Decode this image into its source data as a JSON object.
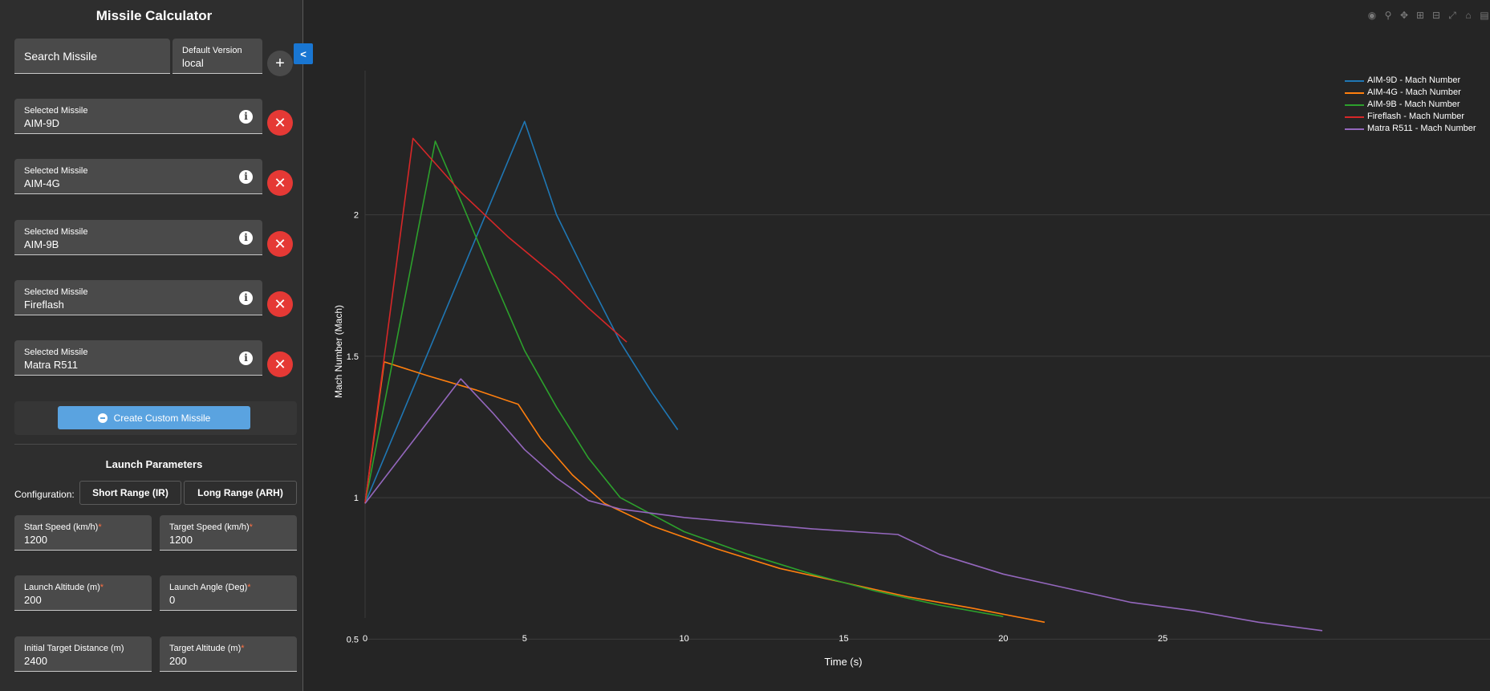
{
  "sidebar": {
    "title": "Missile Calculator",
    "search": {
      "placeholder": "Search Missile"
    },
    "version": {
      "label": "Default Version",
      "value": "local"
    },
    "selected_label": "Selected Missile",
    "selected_missiles": [
      "AIM-9D",
      "AIM-4G",
      "AIM-9B",
      "Fireflash",
      "Matra R511"
    ],
    "create_custom_label": "Create Custom Missile",
    "launch_parameters_title": "Launch Parameters",
    "configuration_label": "Configuration:",
    "config_short": "Short Range (IR)",
    "config_long": "Long Range (ARH)",
    "params": [
      {
        "label": "Start Speed (km/h)",
        "required": true,
        "value": "1200"
      },
      {
        "label": "Target Speed (km/h)",
        "required": true,
        "value": "1200"
      },
      {
        "label": "Launch Altitude (m)",
        "required": true,
        "value": "200"
      },
      {
        "label": "Launch Angle (Deg)",
        "required": true,
        "value": "0"
      },
      {
        "label": "Initial Target Distance (m)",
        "required": false,
        "value": "2400"
      },
      {
        "label": "Target Altitude (m)",
        "required": true,
        "value": "200"
      }
    ]
  },
  "icons": {
    "add": "plus-icon",
    "remove": "close-icon",
    "info": "info-icon",
    "collapse": "chevron-left-icon"
  },
  "chart_data": {
    "type": "line",
    "xlabel": "Time (s)",
    "ylabel": "Mach Number (Mach)",
    "xlim": [
      0,
      30
    ],
    "ylim": [
      0.47,
      2.43
    ],
    "xticks": [
      0,
      5,
      10,
      15,
      20,
      25
    ],
    "yticks": [
      0.5,
      1,
      1.5,
      2
    ],
    "grid": true,
    "legend_position": "top-right",
    "series": [
      {
        "name": "AIM-9D - Mach Number",
        "color": "#1f77b4",
        "x": [
          0,
          5,
          6,
          7,
          8,
          9,
          9.8
        ],
        "y": [
          0.98,
          2.33,
          2.0,
          1.77,
          1.55,
          1.37,
          1.24
        ]
      },
      {
        "name": "AIM-4G - Mach Number",
        "color": "#ff7f0e",
        "x": [
          0,
          0.6,
          2,
          3.5,
          4.8,
          5.5,
          6.5,
          7.5,
          9,
          11,
          13,
          15,
          17,
          19,
          21.3
        ],
        "y": [
          0.98,
          1.48,
          1.43,
          1.38,
          1.33,
          1.21,
          1.08,
          0.98,
          0.9,
          0.82,
          0.75,
          0.7,
          0.65,
          0.61,
          0.56
        ]
      },
      {
        "name": "AIM-9B - Mach Number",
        "color": "#2ca02c",
        "x": [
          0,
          2.2,
          3,
          4,
          5,
          6,
          7,
          8,
          9,
          10,
          12,
          14,
          16,
          18,
          20
        ],
        "y": [
          0.98,
          2.26,
          2.05,
          1.78,
          1.52,
          1.32,
          1.14,
          1.0,
          0.94,
          0.88,
          0.8,
          0.73,
          0.67,
          0.62,
          0.58
        ]
      },
      {
        "name": "Fireflash - Mach Number",
        "color": "#d62728",
        "x": [
          0,
          1.5,
          3,
          4.5,
          6,
          7,
          8.2
        ],
        "y": [
          0.98,
          2.27,
          2.08,
          1.92,
          1.78,
          1.67,
          1.55
        ]
      },
      {
        "name": "Matra R511 - Mach Number",
        "color": "#9467bd",
        "x": [
          0,
          3,
          4,
          5,
          6,
          7,
          8,
          10,
          12,
          14,
          16.7,
          18,
          20,
          22,
          24,
          26,
          28,
          30
        ],
        "y": [
          0.98,
          1.42,
          1.3,
          1.17,
          1.07,
          0.99,
          0.96,
          0.93,
          0.91,
          0.89,
          0.87,
          0.8,
          0.73,
          0.68,
          0.63,
          0.6,
          0.56,
          0.53
        ]
      }
    ]
  }
}
